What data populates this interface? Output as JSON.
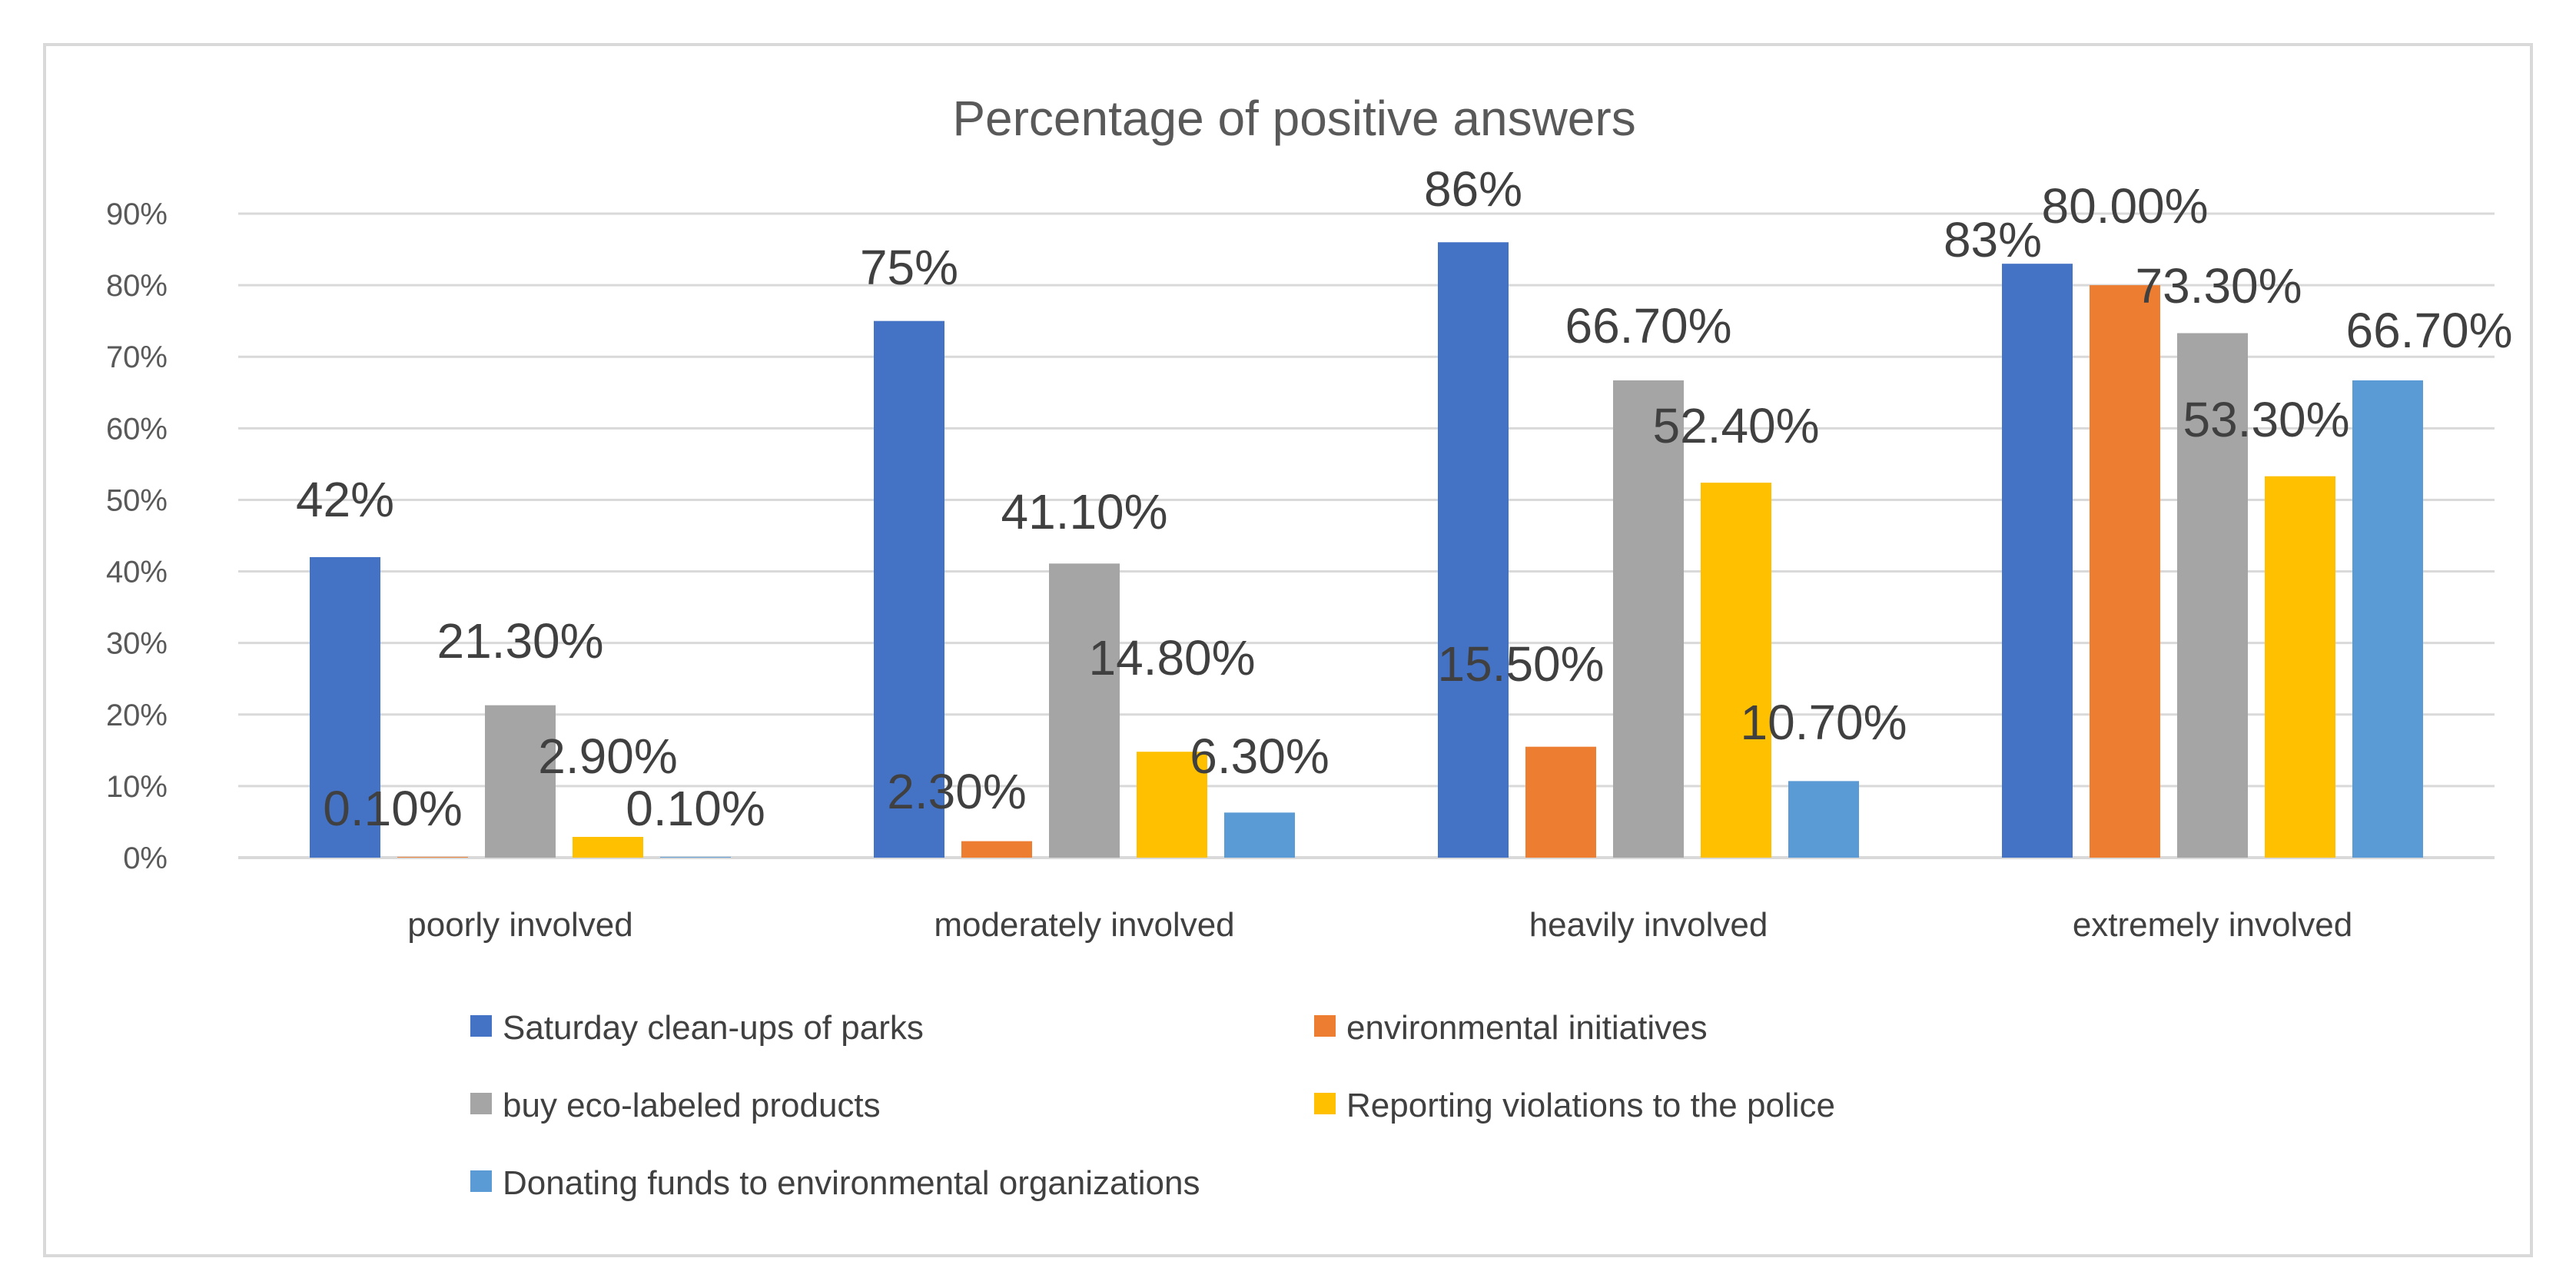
{
  "chart_data": {
    "type": "bar",
    "title": "Percentage of positive answers",
    "categories": [
      "poorly involved",
      "moderately involved",
      "heavily involved",
      "extremely involved"
    ],
    "ylim": [
      0,
      90
    ],
    "y_ticks": [
      "0%",
      "10%",
      "20%",
      "30%",
      "40%",
      "50%",
      "60%",
      "70%",
      "80%",
      "90%"
    ],
    "grid": true,
    "legend_position": "bottom",
    "series": [
      {
        "name": "Saturday clean-ups of parks",
        "color": "#4472C4",
        "values": [
          42,
          75,
          86,
          83
        ],
        "labels": [
          "42%",
          "75%",
          "86%",
          "83%"
        ]
      },
      {
        "name": "environmental initiatives",
        "color": "#ED7D31",
        "values": [
          0.1,
          2.3,
          15.5,
          80.0
        ],
        "labels": [
          "0.10%",
          "2.30%",
          "15.50%",
          "80.00%"
        ]
      },
      {
        "name": "buy eco-labeled products",
        "color": "#A5A5A5",
        "values": [
          21.3,
          41.1,
          66.7,
          73.3
        ],
        "labels": [
          "21.30%",
          "41.10%",
          "66.70%",
          "73.30%"
        ]
      },
      {
        "name": "Reporting violations to the police",
        "color": "#FFC000",
        "values": [
          2.9,
          14.8,
          52.4,
          53.3
        ],
        "labels": [
          "2.90%",
          "14.80%",
          "52.40%",
          "53.30%"
        ]
      },
      {
        "name": "Donating funds to environmental organizations",
        "color": "#5B9BD5",
        "values": [
          0.1,
          6.3,
          10.7,
          66.7
        ],
        "labels": [
          "0.10%",
          "6.30%",
          "10.70%",
          "66.70%"
        ]
      }
    ]
  }
}
